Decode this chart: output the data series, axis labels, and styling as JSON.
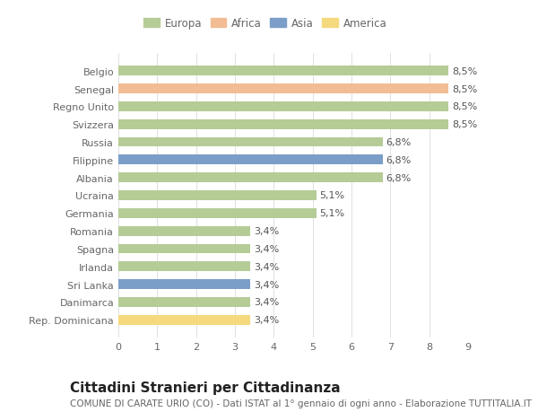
{
  "countries": [
    "Belgio",
    "Senegal",
    "Regno Unito",
    "Svizzera",
    "Russia",
    "Filippine",
    "Albania",
    "Ucraina",
    "Germania",
    "Romania",
    "Spagna",
    "Irlanda",
    "Sri Lanka",
    "Danimarca",
    "Rep. Dominicana"
  ],
  "values": [
    8.5,
    8.5,
    8.5,
    8.5,
    6.8,
    6.8,
    6.8,
    5.1,
    5.1,
    3.4,
    3.4,
    3.4,
    3.4,
    3.4,
    3.4
  ],
  "labels": [
    "8,5%",
    "8,5%",
    "8,5%",
    "8,5%",
    "6,8%",
    "6,8%",
    "6,8%",
    "5,1%",
    "5,1%",
    "3,4%",
    "3,4%",
    "3,4%",
    "3,4%",
    "3,4%",
    "3,4%"
  ],
  "continents": [
    "Europa",
    "Africa",
    "Europa",
    "Europa",
    "Europa",
    "Asia",
    "Europa",
    "Europa",
    "Europa",
    "Europa",
    "Europa",
    "Europa",
    "Asia",
    "Europa",
    "America"
  ],
  "colors": {
    "Europa": "#b5cc96",
    "Africa": "#f2bc94",
    "Asia": "#7b9ec8",
    "America": "#f5d97e"
  },
  "legend_order": [
    "Europa",
    "Africa",
    "Asia",
    "America"
  ],
  "xlim": [
    0,
    9
  ],
  "xticks": [
    0,
    1,
    2,
    3,
    4,
    5,
    6,
    7,
    8,
    9
  ],
  "title": "Cittadini Stranieri per Cittadinanza",
  "subtitle": "COMUNE DI CARATE URIO (CO) - Dati ISTAT al 1° gennaio di ogni anno - Elaborazione TUTTITALIA.IT",
  "bg_color": "#ffffff",
  "bar_height": 0.55,
  "title_fontsize": 11,
  "subtitle_fontsize": 7.5,
  "label_fontsize": 8,
  "tick_fontsize": 8
}
